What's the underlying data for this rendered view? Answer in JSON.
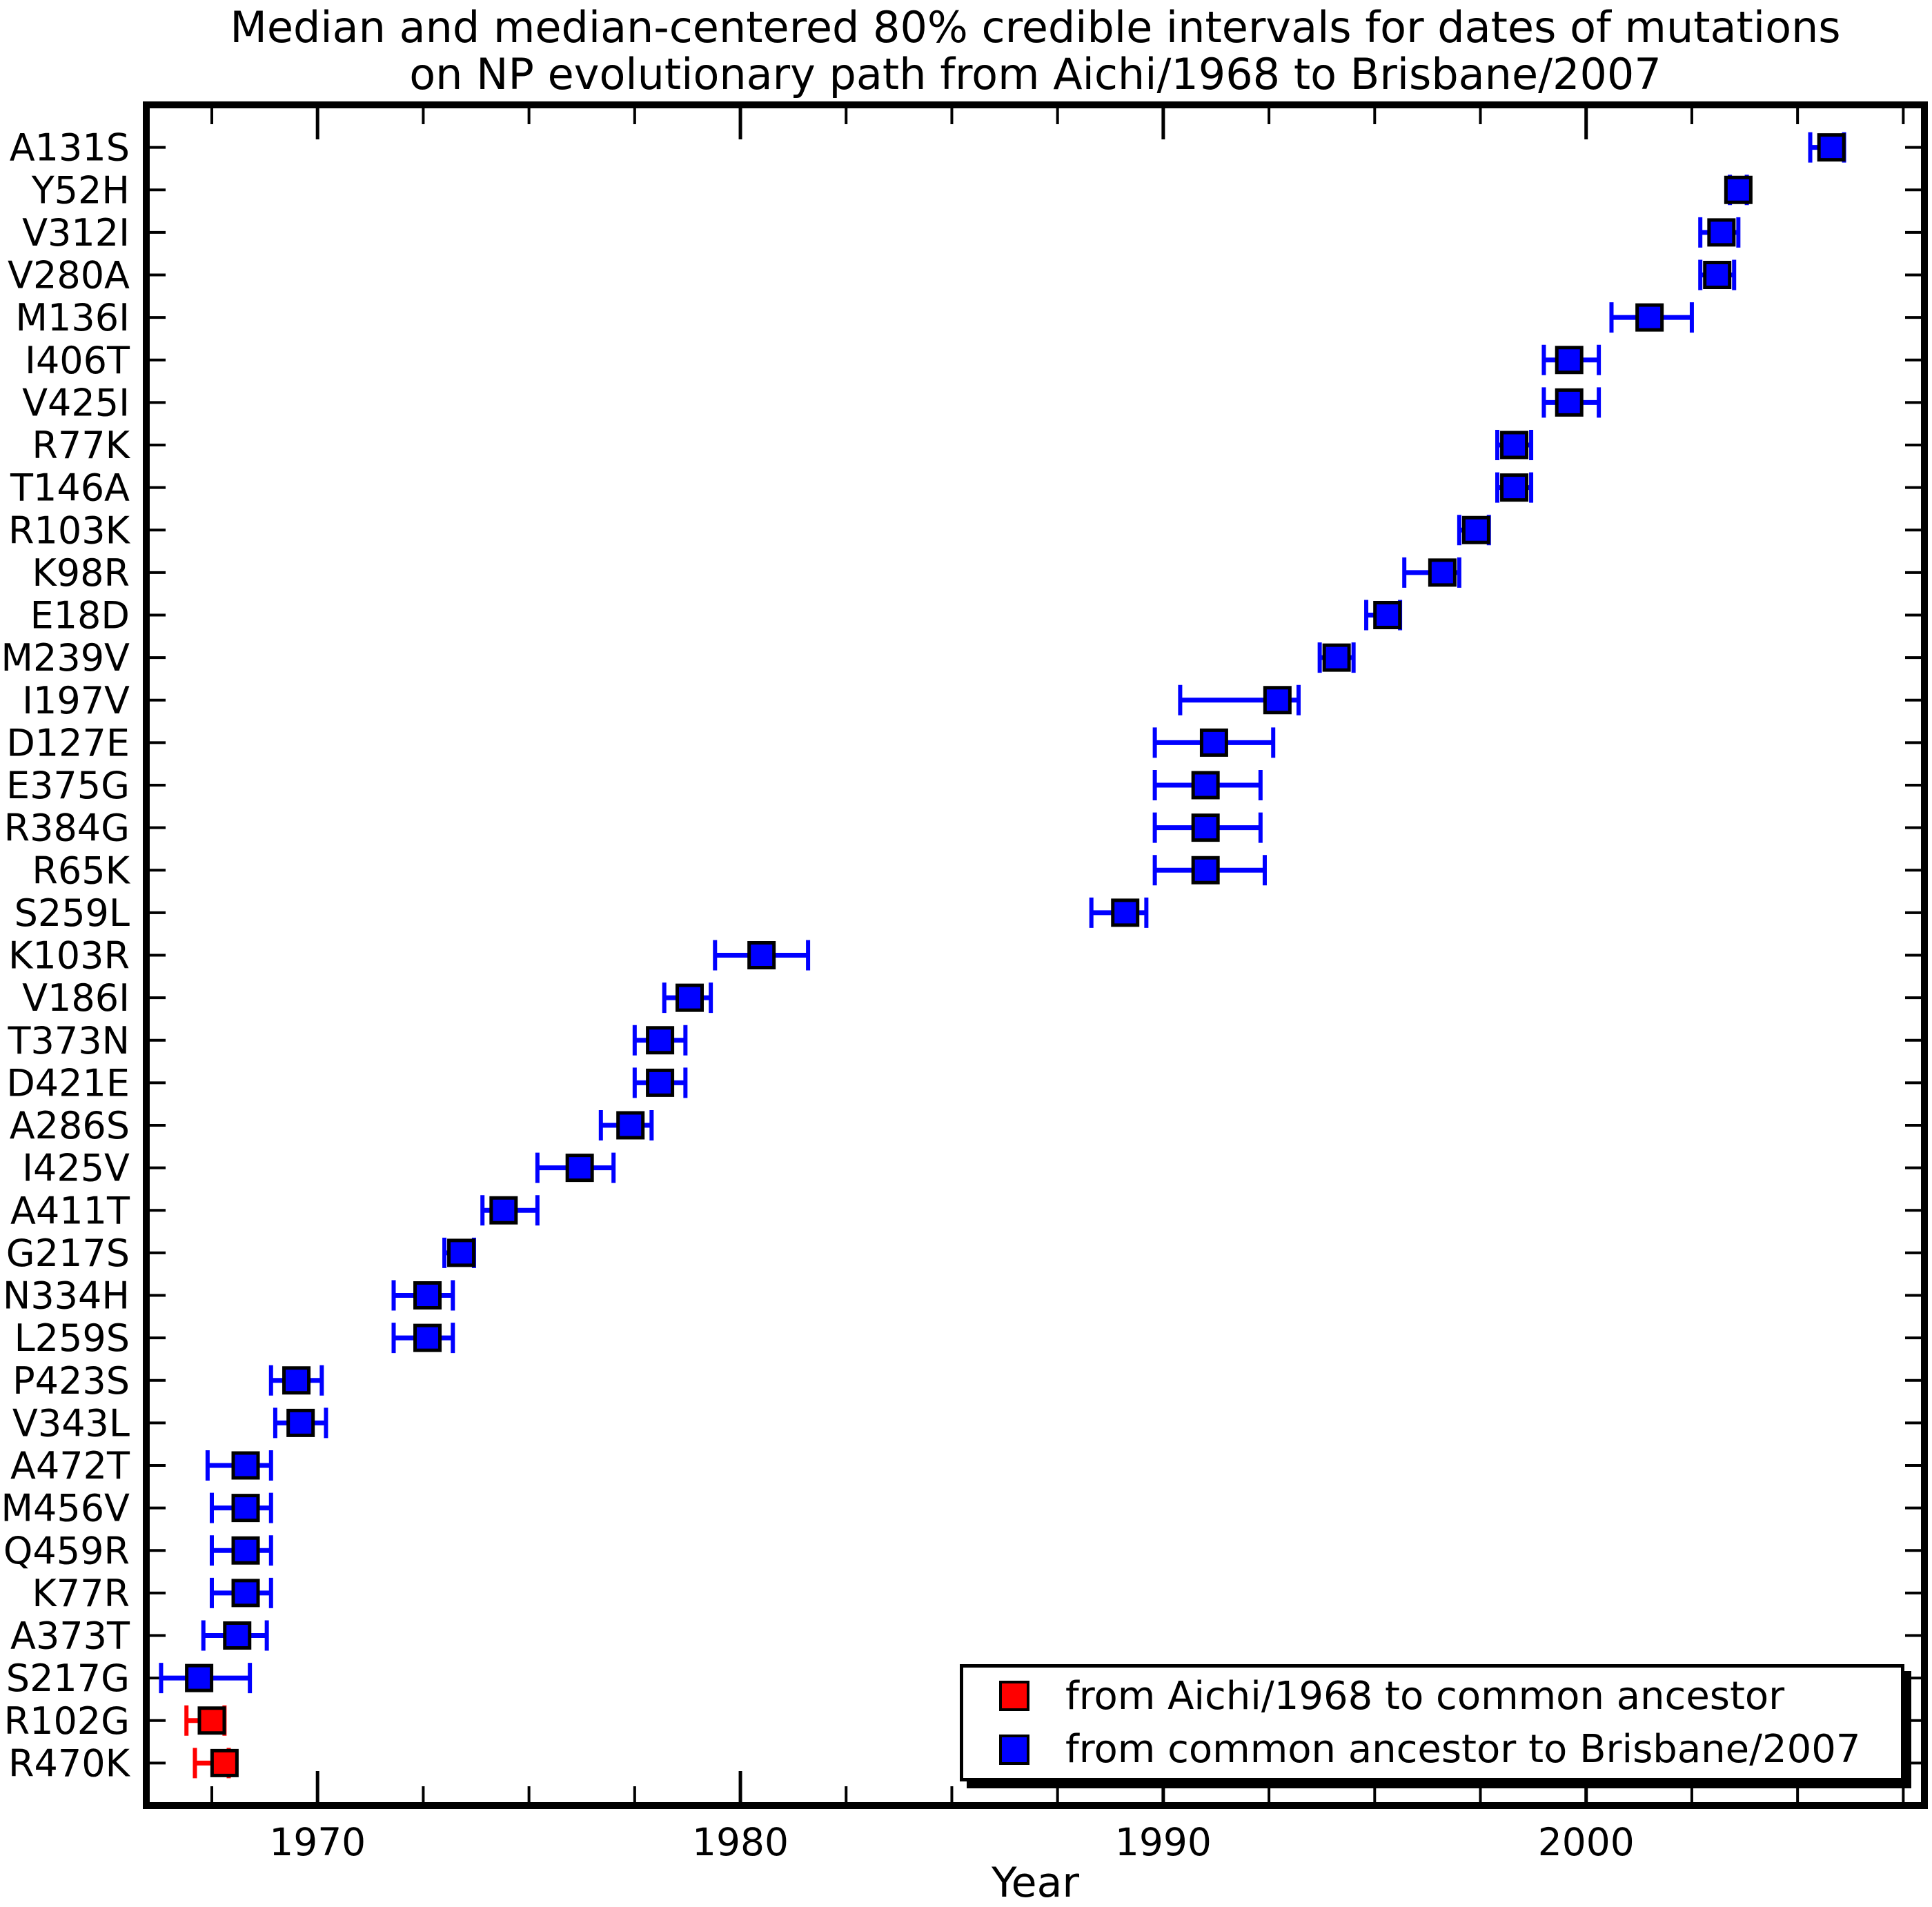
{
  "chart_data": {
    "type": "scatter",
    "title_line1": "Median and median-centered 80% credible intervals for dates of mutations",
    "title_line2": "on NP evolutionary path from Aichi/1968 to Brisbane/2007",
    "xlabel": "Year",
    "xlim": [
      1965.95,
      2008.0
    ],
    "x_major_ticks": [
      1970,
      1980,
      1990,
      2000
    ],
    "x_minor_tick_step": 2.5,
    "grid": "off",
    "axis_color": "#000000",
    "background_color": "#ffffff",
    "legend_position": "lower-right",
    "legend": [
      {
        "label": "from Aichi/1968 to common ancestor",
        "color": "#ff0000"
      },
      {
        "label": "from common ancestor to Brisbane/2007",
        "color": "#0000ff"
      }
    ],
    "points": [
      {
        "mutation": "A131S",
        "median": 2005.8,
        "ci_low": 2005.3,
        "ci_high": 2006.1,
        "legend_index": 1
      },
      {
        "mutation": "Y52H",
        "median": 2003.6,
        "ci_low": 2003.4,
        "ci_high": 2003.8,
        "legend_index": 1
      },
      {
        "mutation": "V312I",
        "median": 2003.2,
        "ci_low": 2002.7,
        "ci_high": 2003.6,
        "legend_index": 1
      },
      {
        "mutation": "V280A",
        "median": 2003.1,
        "ci_low": 2002.7,
        "ci_high": 2003.5,
        "legend_index": 1
      },
      {
        "mutation": "M136I",
        "median": 2001.5,
        "ci_low": 2000.6,
        "ci_high": 2002.5,
        "legend_index": 1
      },
      {
        "mutation": "I406T",
        "median": 1999.6,
        "ci_low": 1999.0,
        "ci_high": 2000.3,
        "legend_index": 1
      },
      {
        "mutation": "V425I",
        "median": 1999.6,
        "ci_low": 1999.0,
        "ci_high": 2000.3,
        "legend_index": 1
      },
      {
        "mutation": "R77K",
        "median": 1998.3,
        "ci_low": 1997.9,
        "ci_high": 1998.7,
        "legend_index": 1
      },
      {
        "mutation": "T146A",
        "median": 1998.3,
        "ci_low": 1997.9,
        "ci_high": 1998.7,
        "legend_index": 1
      },
      {
        "mutation": "R103K",
        "median": 1997.4,
        "ci_low": 1997.0,
        "ci_high": 1997.7,
        "legend_index": 1
      },
      {
        "mutation": "K98R",
        "median": 1996.6,
        "ci_low": 1995.7,
        "ci_high": 1997.0,
        "legend_index": 1
      },
      {
        "mutation": "E18D",
        "median": 1995.3,
        "ci_low": 1994.8,
        "ci_high": 1995.6,
        "legend_index": 1
      },
      {
        "mutation": "M239V",
        "median": 1994.1,
        "ci_low": 1993.7,
        "ci_high": 1994.5,
        "legend_index": 1
      },
      {
        "mutation": "I197V",
        "median": 1992.7,
        "ci_low": 1990.4,
        "ci_high": 1993.2,
        "legend_index": 1
      },
      {
        "mutation": "D127E",
        "median": 1991.2,
        "ci_low": 1989.8,
        "ci_high": 1992.6,
        "legend_index": 1
      },
      {
        "mutation": "E375G",
        "median": 1991.0,
        "ci_low": 1989.8,
        "ci_high": 1992.3,
        "legend_index": 1
      },
      {
        "mutation": "R384G",
        "median": 1991.0,
        "ci_low": 1989.8,
        "ci_high": 1992.3,
        "legend_index": 1
      },
      {
        "mutation": "R65K",
        "median": 1991.0,
        "ci_low": 1989.8,
        "ci_high": 1992.4,
        "legend_index": 1
      },
      {
        "mutation": "S259L",
        "median": 1989.1,
        "ci_low": 1988.3,
        "ci_high": 1989.6,
        "legend_index": 1
      },
      {
        "mutation": "K103R",
        "median": 1980.5,
        "ci_low": 1979.4,
        "ci_high": 1981.6,
        "legend_index": 1
      },
      {
        "mutation": "V186I",
        "median": 1978.8,
        "ci_low": 1978.2,
        "ci_high": 1979.3,
        "legend_index": 1
      },
      {
        "mutation": "T373N",
        "median": 1978.1,
        "ci_low": 1977.5,
        "ci_high": 1978.7,
        "legend_index": 1
      },
      {
        "mutation": "D421E",
        "median": 1978.1,
        "ci_low": 1977.5,
        "ci_high": 1978.7,
        "legend_index": 1
      },
      {
        "mutation": "A286S",
        "median": 1977.4,
        "ci_low": 1976.7,
        "ci_high": 1977.9,
        "legend_index": 1
      },
      {
        "mutation": "I425V",
        "median": 1976.2,
        "ci_low": 1975.2,
        "ci_high": 1977.0,
        "legend_index": 1
      },
      {
        "mutation": "A411T",
        "median": 1974.4,
        "ci_low": 1973.9,
        "ci_high": 1975.2,
        "legend_index": 1
      },
      {
        "mutation": "G217S",
        "median": 1973.4,
        "ci_low": 1973.0,
        "ci_high": 1973.7,
        "legend_index": 1
      },
      {
        "mutation": "N334H",
        "median": 1972.6,
        "ci_low": 1971.8,
        "ci_high": 1973.2,
        "legend_index": 1
      },
      {
        "mutation": "L259S",
        "median": 1972.6,
        "ci_low": 1971.8,
        "ci_high": 1973.2,
        "legend_index": 1
      },
      {
        "mutation": "P423S",
        "median": 1969.5,
        "ci_low": 1968.9,
        "ci_high": 1970.1,
        "legend_index": 1
      },
      {
        "mutation": "V343L",
        "median": 1969.6,
        "ci_low": 1969.0,
        "ci_high": 1970.2,
        "legend_index": 1
      },
      {
        "mutation": "A472T",
        "median": 1968.3,
        "ci_low": 1967.4,
        "ci_high": 1968.9,
        "legend_index": 1
      },
      {
        "mutation": "M456V",
        "median": 1968.3,
        "ci_low": 1967.5,
        "ci_high": 1968.9,
        "legend_index": 1
      },
      {
        "mutation": "Q459R",
        "median": 1968.3,
        "ci_low": 1967.5,
        "ci_high": 1968.9,
        "legend_index": 1
      },
      {
        "mutation": "K77R",
        "median": 1968.3,
        "ci_low": 1967.5,
        "ci_high": 1968.9,
        "legend_index": 1
      },
      {
        "mutation": "A373T",
        "median": 1968.1,
        "ci_low": 1967.3,
        "ci_high": 1968.8,
        "legend_index": 1
      },
      {
        "mutation": "S217G",
        "median": 1967.2,
        "ci_low": 1966.3,
        "ci_high": 1968.4,
        "legend_index": 1
      },
      {
        "mutation": "R102G",
        "median": 1967.5,
        "ci_low": 1966.9,
        "ci_high": 1967.8,
        "legend_index": 0
      },
      {
        "mutation": "R470K",
        "median": 1967.8,
        "ci_low": 1967.1,
        "ci_high": 1967.9,
        "legend_index": 0
      }
    ]
  }
}
